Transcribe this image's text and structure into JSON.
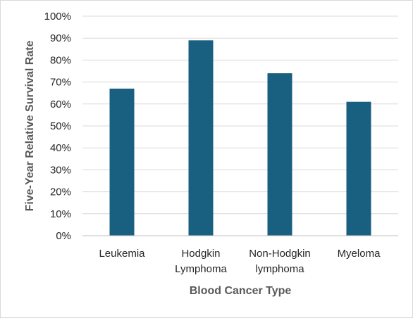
{
  "chart_data": {
    "type": "bar",
    "title": "",
    "xlabel": "Blood Cancer Type",
    "ylabel": "Five-Year Relative Survival Rate",
    "categories": [
      [
        "Leukemia"
      ],
      [
        "Hodgkin",
        "Lymphoma"
      ],
      [
        "Non-Hodgkin",
        "lymphoma"
      ],
      [
        "Myeloma"
      ]
    ],
    "values": [
      67,
      89,
      74,
      61
    ],
    "ylim": [
      0,
      100
    ],
    "yticks": [
      0,
      10,
      20,
      30,
      40,
      50,
      60,
      70,
      80,
      90,
      100
    ],
    "ytick_labels": [
      "0%",
      "10%",
      "20%",
      "30%",
      "40%",
      "50%",
      "60%",
      "70%",
      "80%",
      "90%",
      "100%"
    ],
    "grid": true,
    "legend": "none",
    "colors": {
      "bar": "#185f80",
      "grid": "#d9d9d9",
      "axis": "#bfbfbf"
    }
  }
}
